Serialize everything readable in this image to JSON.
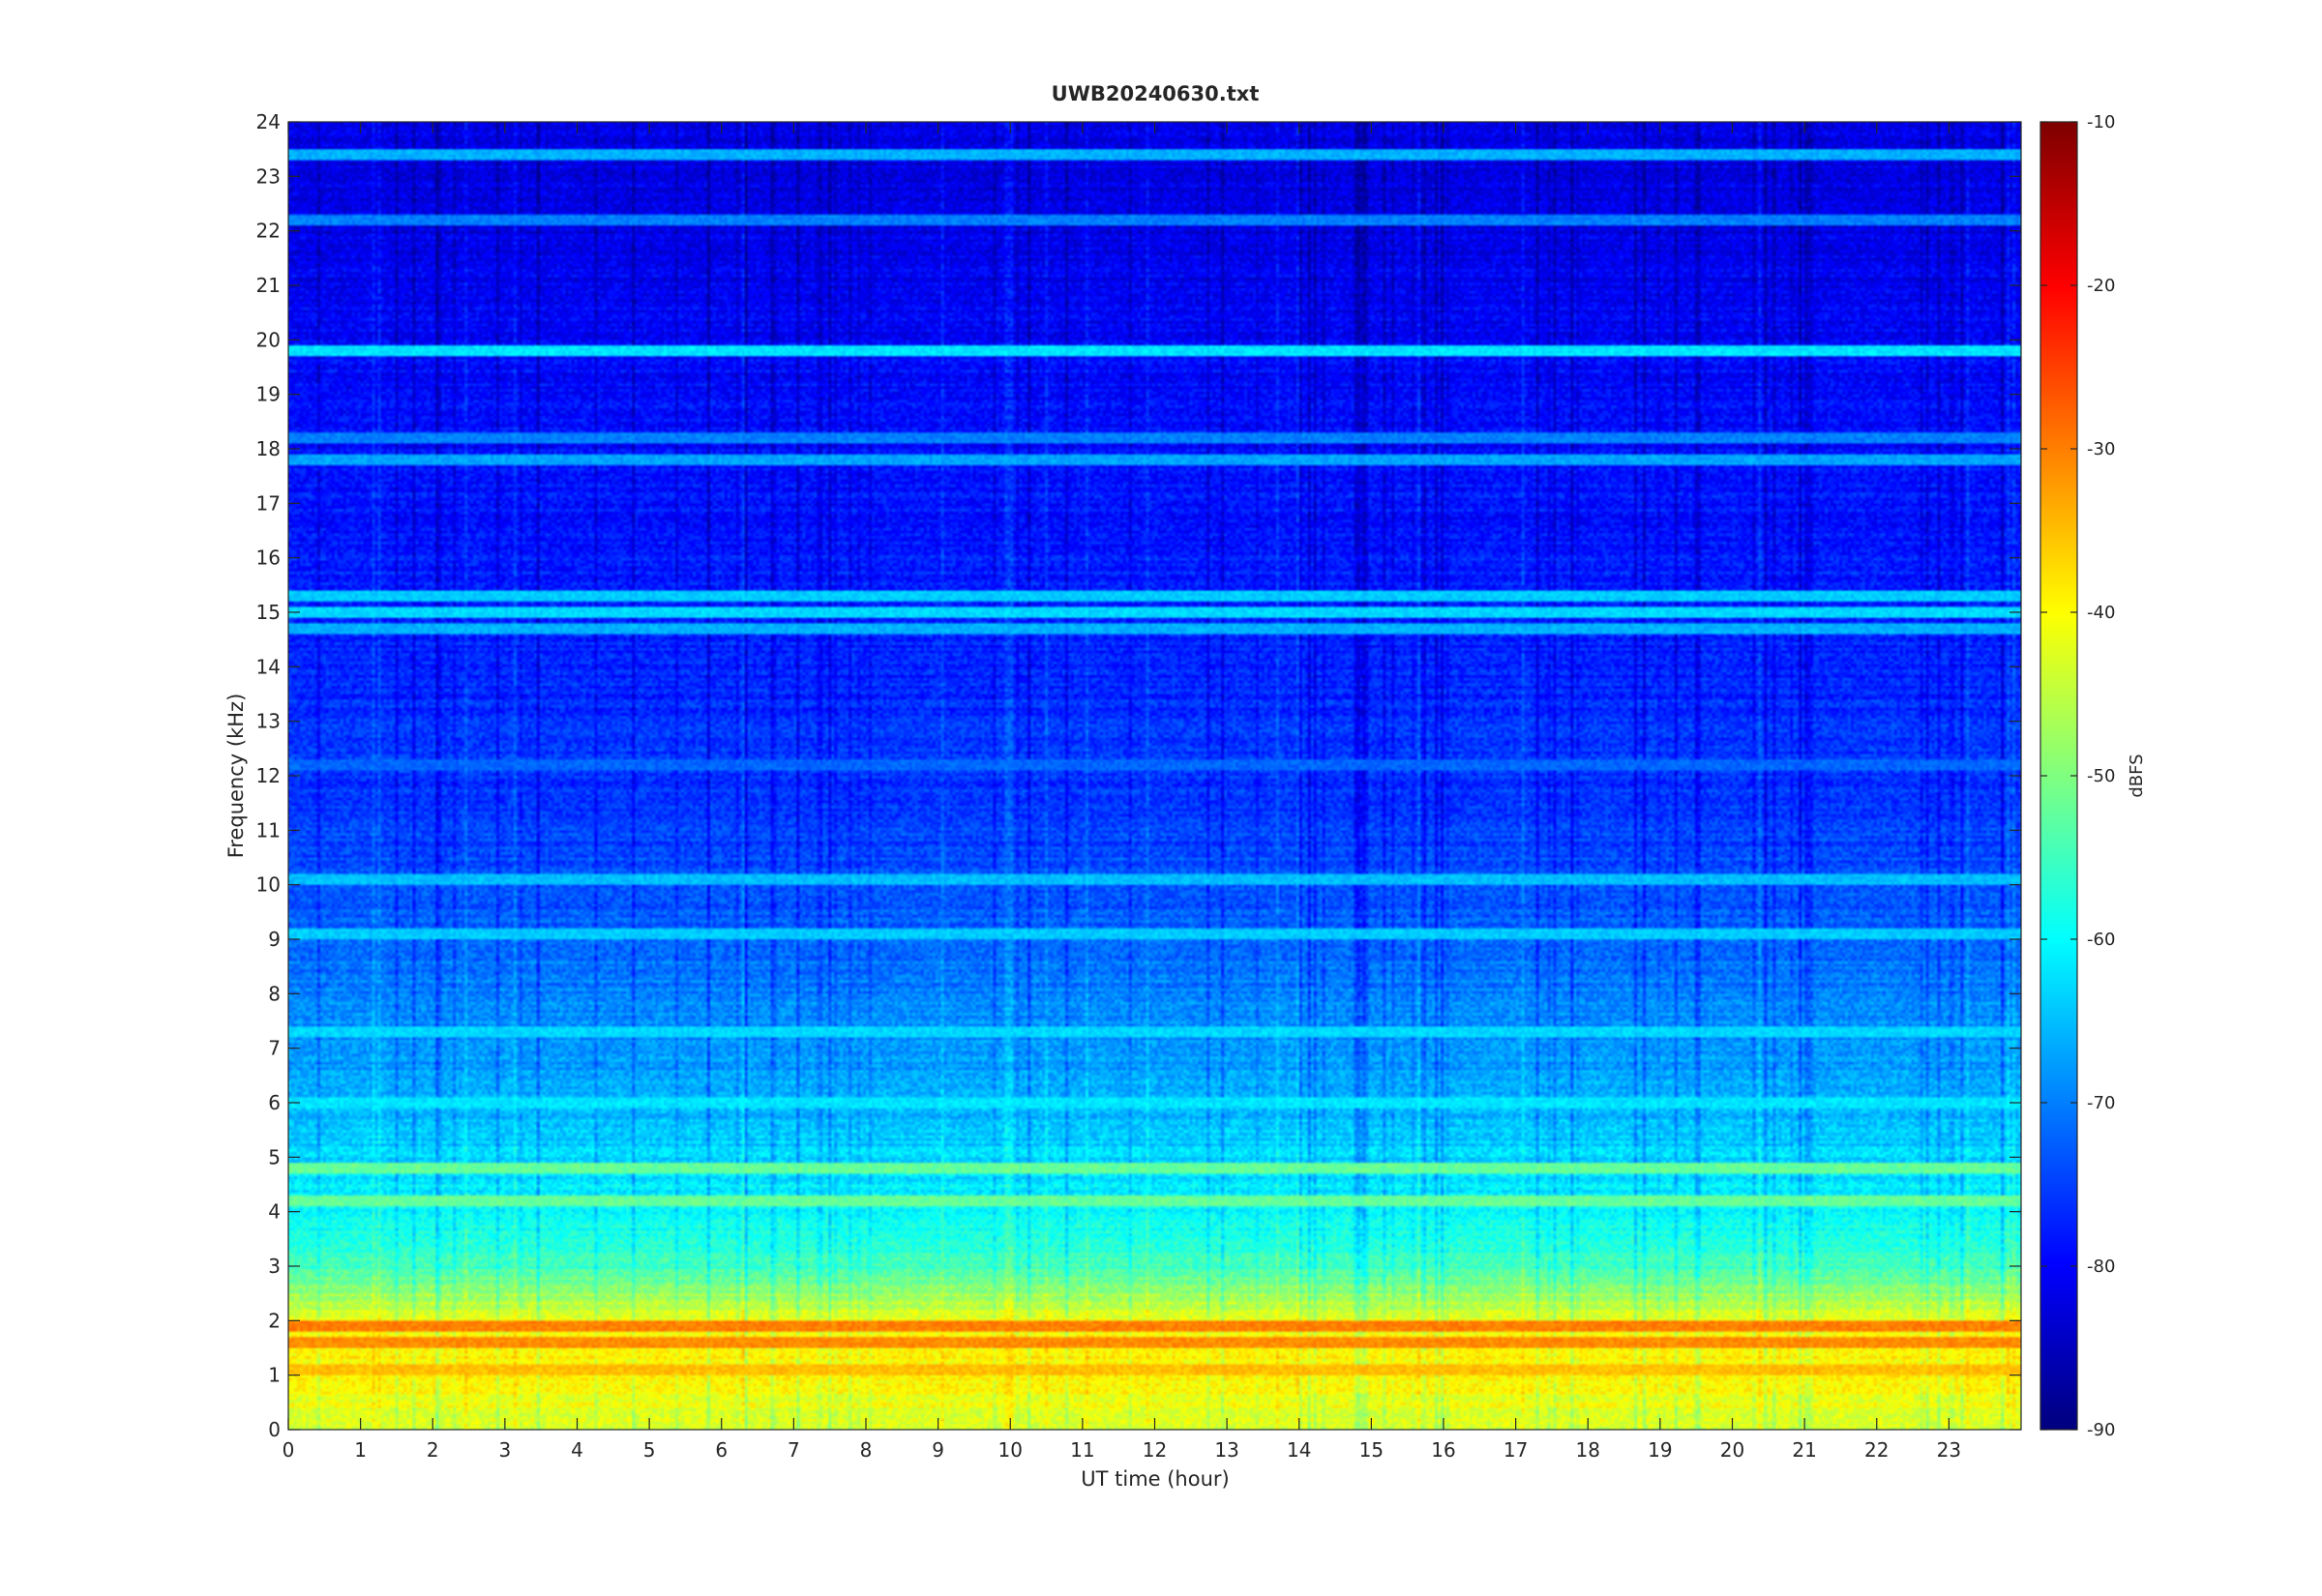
{
  "chart_data": {
    "type": "heatmap",
    "title": "UWB20240630.txt",
    "xlabel": "UT time (hour)",
    "ylabel": "Frequency (kHz)",
    "xlim": [
      0,
      24
    ],
    "ylim": [
      0,
      24
    ],
    "x_ticks": [
      0,
      1,
      2,
      3,
      4,
      5,
      6,
      7,
      8,
      9,
      10,
      11,
      12,
      13,
      14,
      15,
      16,
      17,
      18,
      19,
      20,
      21,
      22,
      23
    ],
    "y_ticks": [
      0,
      1,
      2,
      3,
      4,
      5,
      6,
      7,
      8,
      9,
      10,
      11,
      12,
      13,
      14,
      15,
      16,
      17,
      18,
      19,
      20,
      21,
      22,
      23,
      24
    ],
    "colorbar": {
      "label": "dBFS",
      "range": [
        -90,
        -10
      ],
      "ticks": [
        -10,
        -20,
        -30,
        -40,
        -50,
        -60,
        -70,
        -80,
        -90
      ],
      "colormap": "jet"
    },
    "grid": false,
    "background_level_by_frequency": [
      {
        "freq_khz": 0.0,
        "dbfs": -44
      },
      {
        "freq_khz": 0.5,
        "dbfs": -41
      },
      {
        "freq_khz": 1.0,
        "dbfs": -40
      },
      {
        "freq_khz": 1.5,
        "dbfs": -39
      },
      {
        "freq_khz": 2.0,
        "dbfs": -41
      },
      {
        "freq_khz": 2.5,
        "dbfs": -48
      },
      {
        "freq_khz": 3.0,
        "dbfs": -55
      },
      {
        "freq_khz": 4.0,
        "dbfs": -60
      },
      {
        "freq_khz": 5.0,
        "dbfs": -63
      },
      {
        "freq_khz": 6.0,
        "dbfs": -66
      },
      {
        "freq_khz": 7.0,
        "dbfs": -68
      },
      {
        "freq_khz": 8.0,
        "dbfs": -70
      },
      {
        "freq_khz": 9.0,
        "dbfs": -72
      },
      {
        "freq_khz": 10.0,
        "dbfs": -74
      },
      {
        "freq_khz": 12.0,
        "dbfs": -76
      },
      {
        "freq_khz": 14.0,
        "dbfs": -77
      },
      {
        "freq_khz": 16.0,
        "dbfs": -78
      },
      {
        "freq_khz": 18.0,
        "dbfs": -79
      },
      {
        "freq_khz": 20.0,
        "dbfs": -80
      },
      {
        "freq_khz": 22.0,
        "dbfs": -82
      },
      {
        "freq_khz": 24.0,
        "dbfs": -82
      }
    ],
    "persistent_lines": [
      {
        "freq_khz": 19.8,
        "dbfs": -62
      },
      {
        "freq_khz": 15.3,
        "dbfs": -64
      },
      {
        "freq_khz": 15.0,
        "dbfs": -63
      },
      {
        "freq_khz": 14.7,
        "dbfs": -66
      },
      {
        "freq_khz": 18.2,
        "dbfs": -70
      },
      {
        "freq_khz": 17.8,
        "dbfs": -67
      },
      {
        "freq_khz": 22.2,
        "dbfs": -70
      },
      {
        "freq_khz": 23.4,
        "dbfs": -66
      },
      {
        "freq_khz": 10.1,
        "dbfs": -65
      },
      {
        "freq_khz": 9.1,
        "dbfs": -64
      },
      {
        "freq_khz": 12.2,
        "dbfs": -72
      },
      {
        "freq_khz": 7.3,
        "dbfs": -63
      },
      {
        "freq_khz": 6.0,
        "dbfs": -62
      },
      {
        "freq_khz": 4.8,
        "dbfs": -52
      },
      {
        "freq_khz": 4.2,
        "dbfs": -52
      },
      {
        "freq_khz": 1.9,
        "dbfs": -30
      },
      {
        "freq_khz": 1.6,
        "dbfs": -31
      },
      {
        "freq_khz": 1.1,
        "dbfs": -35
      }
    ]
  }
}
